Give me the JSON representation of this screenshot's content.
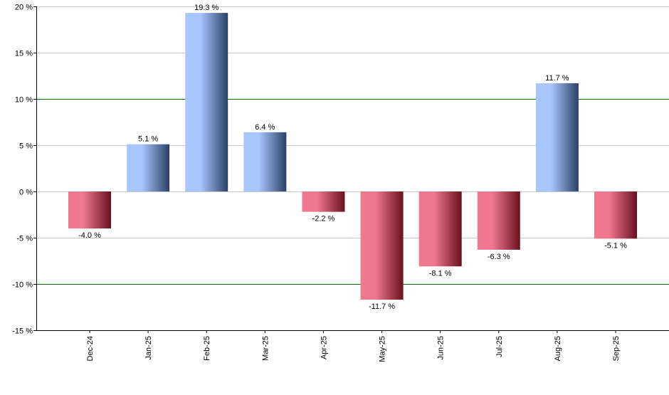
{
  "chart_data": {
    "type": "bar",
    "categories": [
      "Dec-24",
      "Jan-25",
      "Feb-25",
      "Mar-25",
      "Apr-25",
      "May-25",
      "Jun-25",
      "Jul-25",
      "Aug-25",
      "Sep-25"
    ],
    "values": [
      -4.0,
      5.1,
      19.3,
      6.4,
      -2.2,
      -11.7,
      -8.1,
      -6.3,
      11.7,
      -5.1
    ],
    "data_labels": [
      "-4.0 %",
      "5.1 %",
      "19.3 %",
      "6.4 %",
      "-2.2 %",
      "-11.7 %",
      "-8.1 %",
      "-6.3 %",
      "11.7 %",
      "-5.1 %"
    ],
    "ylim": [
      -15,
      20
    ],
    "yticks": [
      20,
      15,
      10,
      5,
      0,
      -5,
      -10,
      -15
    ],
    "ytick_labels": [
      "20 %",
      "15 %",
      "10 %",
      "5 %",
      "0 %",
      "-5 %",
      "-10 %",
      "-15 %"
    ],
    "highlight_gridlines": [
      10,
      -10
    ],
    "grid": true,
    "title": "",
    "xlabel": "",
    "ylabel": "",
    "colors": {
      "positive_light": "#a9c7ff",
      "positive_dark": "#2b4066",
      "negative_light": "#f0788e",
      "negative_dark": "#6a1020",
      "grid": "#c8c8c8",
      "highlight_grid": "#007000",
      "axis": "#000000"
    }
  }
}
